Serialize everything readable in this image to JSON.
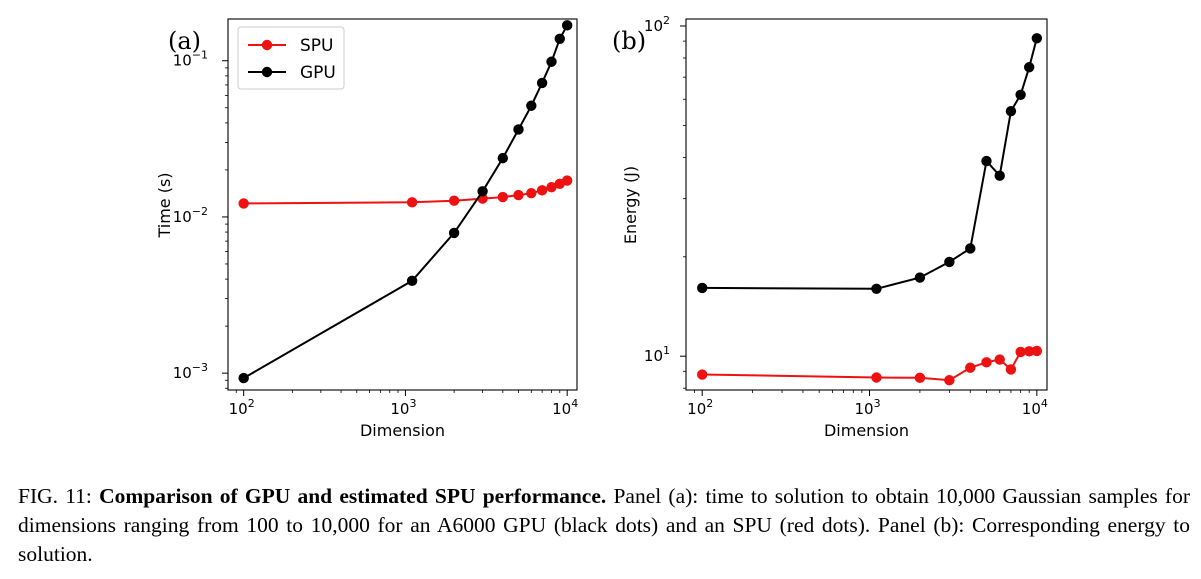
{
  "chart_data": [
    {
      "type": "line",
      "panel_label": "(a)",
      "xlabel": "Dimension",
      "ylabel": "Time (s)",
      "xscale": "log",
      "yscale": "log",
      "xlim": [
        80,
        11500
      ],
      "ylim": [
        0.00078,
        0.185
      ],
      "x_ticks": [
        {
          "value": 100,
          "base": "10",
          "exp": "2"
        },
        {
          "value": 1000,
          "base": "10",
          "exp": "3"
        },
        {
          "value": 10000,
          "base": "10",
          "exp": "4"
        }
      ],
      "y_ticks": [
        {
          "value": 0.001,
          "base": "10",
          "exp": "−3"
        },
        {
          "value": 0.01,
          "base": "10",
          "exp": "−2"
        },
        {
          "value": 0.1,
          "base": "10",
          "exp": "−1"
        }
      ],
      "grid": false,
      "legend": {
        "position": "top-left",
        "entries": [
          "SPU",
          "GPU"
        ]
      },
      "series": [
        {
          "name": "SPU",
          "color": "#ee1111",
          "x": [
            100,
            1100,
            2000,
            3000,
            4000,
            5000,
            6000,
            7000,
            8000,
            9000,
            10000
          ],
          "y": [
            0.0122,
            0.0124,
            0.0127,
            0.0131,
            0.0134,
            0.0138,
            0.0142,
            0.0148,
            0.0155,
            0.0163,
            0.0171
          ]
        },
        {
          "name": "GPU",
          "color": "#000000",
          "x": [
            100,
            1100,
            2000,
            3000,
            4000,
            5000,
            6000,
            7000,
            8000,
            9000,
            10000
          ],
          "y": [
            0.00093,
            0.0039,
            0.0079,
            0.0146,
            0.0238,
            0.0363,
            0.0515,
            0.0721,
            0.0985,
            0.1382,
            0.1685
          ]
        }
      ]
    },
    {
      "type": "line",
      "panel_label": "(b)",
      "xlabel": "Dimension",
      "ylabel": "Energy (J)",
      "xscale": "log",
      "yscale": "log",
      "xlim": [
        80,
        11500
      ],
      "ylim": [
        7.9,
        105
      ],
      "x_ticks": [
        {
          "value": 100,
          "base": "10",
          "exp": "2"
        },
        {
          "value": 1000,
          "base": "10",
          "exp": "3"
        },
        {
          "value": 10000,
          "base": "10",
          "exp": "4"
        }
      ],
      "y_ticks": [
        {
          "value": 10,
          "base": "10",
          "exp": "1"
        },
        {
          "value": 100,
          "base": "10",
          "exp": "2"
        }
      ],
      "grid": false,
      "series": [
        {
          "color": "#000000",
          "x": [
            100,
            1100,
            2000,
            3000,
            4000,
            5000,
            6000,
            7000,
            8000,
            9000,
            10000
          ],
          "y": [
            16.1,
            16.0,
            17.3,
            19.3,
            21.2,
            39.0,
            35.2,
            55.2,
            61.9,
            75.0,
            91.8
          ]
        },
        {
          "color": "#ee1111",
          "x": [
            100,
            1100,
            2000,
            3000,
            4000,
            5000,
            6000,
            7000,
            8000,
            9000,
            10000
          ],
          "y": [
            8.8,
            8.62,
            8.6,
            8.46,
            9.23,
            9.58,
            9.77,
            9.12,
            10.3,
            10.35,
            10.37
          ]
        }
      ]
    }
  ],
  "caption": {
    "fig_label": "FIG. 11:",
    "bold": "Comparison of GPU and estimated SPU performance.",
    "body": "Panel (a): time to solution to obtain 10,000 Gaussian samples for dimensions ranging from 100 to 10,000 for an A6000 GPU (black dots) and an SPU (red dots). Panel (b): Corresponding energy to solution."
  }
}
